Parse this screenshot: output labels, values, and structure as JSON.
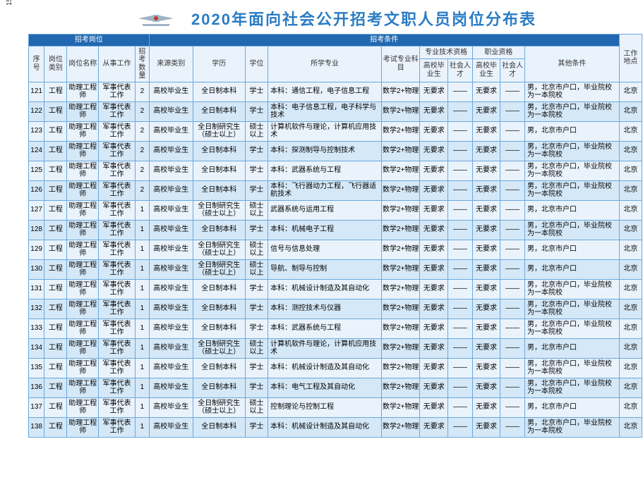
{
  "page_number": "15",
  "title": "2020年面向社会公开招考文职人员岗位分布表",
  "headers": {
    "group_positions": "招考岗位",
    "group_conditions": "招考条件",
    "seq": "序号",
    "category": "岗位类别",
    "position": "岗位名称",
    "work": "从事工作",
    "count": "招考数量",
    "source": "来源类别",
    "education": "学历",
    "degree": "学位",
    "major": "所学专业",
    "subject": "考试专业科　目",
    "prof_qual": "专业技术资格",
    "occ_qual": "职业资格",
    "grad": "高校毕业生",
    "social": "社会人才",
    "other": "其他条件",
    "location": "工作地点"
  },
  "rows": [
    {
      "seq": "121",
      "cat": "工程",
      "pos": "助理工程师",
      "work": "军事代表工作",
      "num": "2",
      "src": "高校毕业生",
      "edu": "全日制本科",
      "deg": "学士",
      "major": "本科：通信工程，电子信息工程",
      "subj": "数学2+物理",
      "pq1": "无要求",
      "pq2": "——",
      "oq1": "无要求",
      "oq2": "——",
      "other": "男，北京市户口，毕业院校为一本院校",
      "loc": "北京"
    },
    {
      "seq": "122",
      "cat": "工程",
      "pos": "助理工程师",
      "work": "军事代表工作",
      "num": "2",
      "src": "高校毕业生",
      "edu": "全日制本科",
      "deg": "学士",
      "major": "本科：电子信息工程，电子科学与技术",
      "subj": "数学2+物理",
      "pq1": "无要求",
      "pq2": "——",
      "oq1": "无要求",
      "oq2": "——",
      "other": "男，北京市户口，毕业院校为一本院校",
      "loc": "北京"
    },
    {
      "seq": "123",
      "cat": "工程",
      "pos": "助理工程师",
      "work": "军事代表工作",
      "num": "2",
      "src": "高校毕业生",
      "edu": "全日制研究生（硕士以上）",
      "deg": "硕士以上",
      "major": "计算机软件与理论，计算机应用技术",
      "subj": "数学2+物理",
      "pq1": "无要求",
      "pq2": "——",
      "oq1": "无要求",
      "oq2": "——",
      "other": "男，北京市户口",
      "loc": "北京"
    },
    {
      "seq": "124",
      "cat": "工程",
      "pos": "助理工程师",
      "work": "军事代表工作",
      "num": "2",
      "src": "高校毕业生",
      "edu": "全日制本科",
      "deg": "学士",
      "major": "本科：探测制导与控制技术",
      "subj": "数学2+物理",
      "pq1": "无要求",
      "pq2": "——",
      "oq1": "无要求",
      "oq2": "——",
      "other": "男，北京市户口，毕业院校为一本院校",
      "loc": "北京"
    },
    {
      "seq": "125",
      "cat": "工程",
      "pos": "助理工程师",
      "work": "军事代表工作",
      "num": "2",
      "src": "高校毕业生",
      "edu": "全日制本科",
      "deg": "学士",
      "major": "本科：武器系统与工程",
      "subj": "数学2+物理",
      "pq1": "无要求",
      "pq2": "——",
      "oq1": "无要求",
      "oq2": "——",
      "other": "男，北京市户口，毕业院校为一本院校",
      "loc": "北京"
    },
    {
      "seq": "126",
      "cat": "工程",
      "pos": "助理工程师",
      "work": "军事代表工作",
      "num": "2",
      "src": "高校毕业生",
      "edu": "全日制本科",
      "deg": "学士",
      "major": "本科：飞行器动力工程，飞行器适航技术",
      "subj": "数学2+物理",
      "pq1": "无要求",
      "pq2": "——",
      "oq1": "无要求",
      "oq2": "——",
      "other": "男，北京市户口，毕业院校为一本院校",
      "loc": "北京"
    },
    {
      "seq": "127",
      "cat": "工程",
      "pos": "助理工程师",
      "work": "军事代表工作",
      "num": "1",
      "src": "高校毕业生",
      "edu": "全日制研究生（硕士以上）",
      "deg": "硕士以上",
      "major": "武器系统与运用工程",
      "subj": "数学2+物理",
      "pq1": "无要求",
      "pq2": "——",
      "oq1": "无要求",
      "oq2": "——",
      "other": "男，北京市户口",
      "loc": "北京"
    },
    {
      "seq": "128",
      "cat": "工程",
      "pos": "助理工程师",
      "work": "军事代表工作",
      "num": "1",
      "src": "高校毕业生",
      "edu": "全日制本科",
      "deg": "学士",
      "major": "本科：机械电子工程",
      "subj": "数学2+物理",
      "pq1": "无要求",
      "pq2": "——",
      "oq1": "无要求",
      "oq2": "——",
      "other": "男，北京市户口，毕业院校为一本院校",
      "loc": "北京"
    },
    {
      "seq": "129",
      "cat": "工程",
      "pos": "助理工程师",
      "work": "军事代表工作",
      "num": "1",
      "src": "高校毕业生",
      "edu": "全日制研究生（硕士以上）",
      "deg": "硕士以上",
      "major": "信号与信息处理",
      "subj": "数学2+物理",
      "pq1": "无要求",
      "pq2": "——",
      "oq1": "无要求",
      "oq2": "——",
      "other": "男，北京市户口",
      "loc": "北京"
    },
    {
      "seq": "130",
      "cat": "工程",
      "pos": "助理工程师",
      "work": "军事代表工作",
      "num": "1",
      "src": "高校毕业生",
      "edu": "全日制研究生（硕士以上）",
      "deg": "硕士以上",
      "major": "导航、制导与控制",
      "subj": "数学2+物理",
      "pq1": "无要求",
      "pq2": "——",
      "oq1": "无要求",
      "oq2": "——",
      "other": "男，北京市户口",
      "loc": "北京"
    },
    {
      "seq": "131",
      "cat": "工程",
      "pos": "助理工程师",
      "work": "军事代表工作",
      "num": "1",
      "src": "高校毕业生",
      "edu": "全日制本科",
      "deg": "学士",
      "major": "本科：机械设计制造及其自动化",
      "subj": "数学2+物理",
      "pq1": "无要求",
      "pq2": "——",
      "oq1": "无要求",
      "oq2": "——",
      "other": "男，北京市户口，毕业院校为一本院校",
      "loc": "北京"
    },
    {
      "seq": "132",
      "cat": "工程",
      "pos": "助理工程师",
      "work": "军事代表工作",
      "num": "1",
      "src": "高校毕业生",
      "edu": "全日制本科",
      "deg": "学士",
      "major": "本科：测控技术与仪器",
      "subj": "数学2+物理",
      "pq1": "无要求",
      "pq2": "——",
      "oq1": "无要求",
      "oq2": "——",
      "other": "男，北京市户口，毕业院校为一本院校",
      "loc": "北京"
    },
    {
      "seq": "133",
      "cat": "工程",
      "pos": "助理工程师",
      "work": "军事代表工作",
      "num": "1",
      "src": "高校毕业生",
      "edu": "全日制本科",
      "deg": "学士",
      "major": "本科：武器系统与工程",
      "subj": "数学2+物理",
      "pq1": "无要求",
      "pq2": "——",
      "oq1": "无要求",
      "oq2": "——",
      "other": "男，北京市户口，毕业院校为一本院校",
      "loc": "北京"
    },
    {
      "seq": "134",
      "cat": "工程",
      "pos": "助理工程师",
      "work": "军事代表工作",
      "num": "1",
      "src": "高校毕业生",
      "edu": "全日制研究生（硕士以上）",
      "deg": "硕士以上",
      "major": "计算机软件与理论，计算机应用技术",
      "subj": "数学2+物理",
      "pq1": "无要求",
      "pq2": "——",
      "oq1": "无要求",
      "oq2": "——",
      "other": "男，北京市户口",
      "loc": "北京"
    },
    {
      "seq": "135",
      "cat": "工程",
      "pos": "助理工程师",
      "work": "军事代表工作",
      "num": "1",
      "src": "高校毕业生",
      "edu": "全日制本科",
      "deg": "学士",
      "major": "本科：机械设计制造及其自动化",
      "subj": "数学2+物理",
      "pq1": "无要求",
      "pq2": "——",
      "oq1": "无要求",
      "oq2": "——",
      "other": "男，北京市户口，毕业院校为一本院校",
      "loc": "北京"
    },
    {
      "seq": "136",
      "cat": "工程",
      "pos": "助理工程师",
      "work": "军事代表工作",
      "num": "1",
      "src": "高校毕业生",
      "edu": "全日制本科",
      "deg": "学士",
      "major": "本科：电气工程及其自动化",
      "subj": "数学2+物理",
      "pq1": "无要求",
      "pq2": "——",
      "oq1": "无要求",
      "oq2": "——",
      "other": "男，北京市户口，毕业院校为一本院校",
      "loc": "北京"
    },
    {
      "seq": "137",
      "cat": "工程",
      "pos": "助理工程师",
      "work": "军事代表工作",
      "num": "1",
      "src": "高校毕业生",
      "edu": "全日制研究生（硕士以上）",
      "deg": "硕士以上",
      "major": "控制理论与控制工程",
      "subj": "数学2+物理",
      "pq1": "无要求",
      "pq2": "——",
      "oq1": "无要求",
      "oq2": "——",
      "other": "男，北京市户口",
      "loc": "北京"
    },
    {
      "seq": "138",
      "cat": "工程",
      "pos": "助理工程师",
      "work": "军事代表工作",
      "num": "1",
      "src": "高校毕业生",
      "edu": "全日制本科",
      "deg": "学士",
      "major": "本科：机械设计制造及其自动化",
      "subj": "数学2+物理",
      "pq1": "无要求",
      "pq2": "——",
      "oq1": "无要求",
      "oq2": "——",
      "other": "男，北京市户口，毕业院校为一本院校",
      "loc": "北京"
    }
  ]
}
